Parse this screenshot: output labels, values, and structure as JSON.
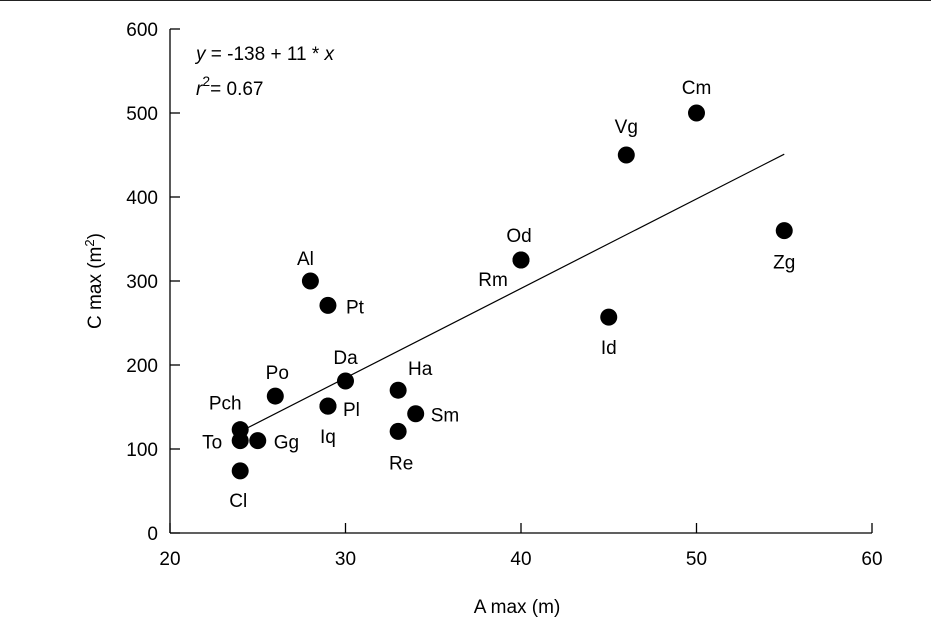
{
  "chart_data": {
    "type": "scatter",
    "title": "",
    "xlabel": "A max (m)",
    "ylabel_main": "C max (m",
    "ylabel_sup": "2",
    "ylabel_end": ")",
    "xlim": [
      20,
      60
    ],
    "ylim": [
      0,
      600
    ],
    "xticks": [
      "20",
      "30",
      "40",
      "50",
      "60"
    ],
    "yticks": [
      "0",
      "100",
      "200",
      "300",
      "400",
      "500",
      "600"
    ],
    "grid": false,
    "equation": {
      "y": "y",
      "eq": " = -138 + 11 * ",
      "x": "x"
    },
    "r2": {
      "r": "r",
      "sup": "2",
      "value": "= 0.67"
    },
    "regression_line": {
      "x": [
        24.4,
        55
      ],
      "y": [
        125,
        451
      ]
    },
    "marker_color": "#000000",
    "points": [
      {
        "label": "Cm",
        "x": 50,
        "y": 500
      },
      {
        "label": "Vg",
        "x": 46,
        "y": 450
      },
      {
        "label": "Zg",
        "x": 55,
        "y": 360
      },
      {
        "label": "Od",
        "x": 40,
        "y": 325
      },
      {
        "label": "Rm",
        "x": 40,
        "y": 325
      },
      {
        "label": "Id",
        "x": 45,
        "y": 257
      },
      {
        "label": "Al",
        "x": 28,
        "y": 300
      },
      {
        "label": "Pt",
        "x": 29,
        "y": 271
      },
      {
        "label": "Po",
        "x": 26,
        "y": 163
      },
      {
        "label": "Da",
        "x": 30,
        "y": 181
      },
      {
        "label": "Pl",
        "x": 29,
        "y": 151
      },
      {
        "label": "Iq",
        "x": 29,
        "y": 151
      },
      {
        "label": "Ha",
        "x": 33,
        "y": 170
      },
      {
        "label": "Sm",
        "x": 34,
        "y": 142
      },
      {
        "label": "Re",
        "x": 33,
        "y": 121
      },
      {
        "label": "Pch",
        "x": 24,
        "y": 123
      },
      {
        "label": "To",
        "x": 24,
        "y": 110
      },
      {
        "label": "Gg",
        "x": 25,
        "y": 110
      },
      {
        "label": "Cl",
        "x": 24,
        "y": 74
      }
    ]
  }
}
